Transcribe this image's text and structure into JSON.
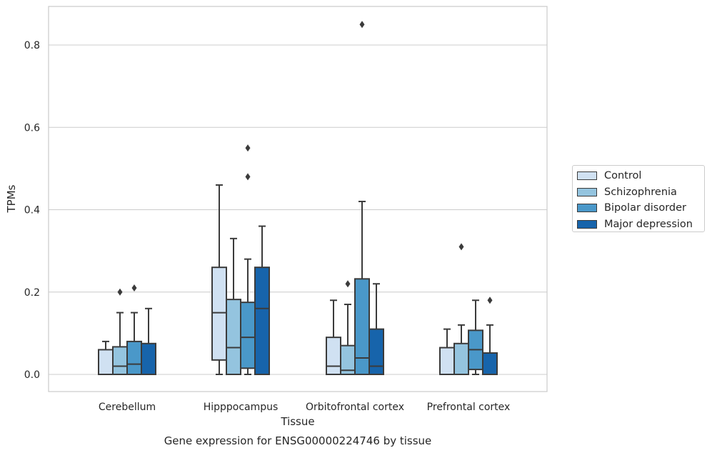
{
  "chart_data": {
    "type": "box",
    "title": "",
    "caption": "Gene expression for ENSG00000224746 by tissue",
    "xlabel": "Tissue",
    "ylabel": "TPMs",
    "ylim": [
      -0.042,
      0.893
    ],
    "yticks": [
      0.0,
      0.2,
      0.4,
      0.6,
      0.8
    ],
    "ytick_labels": [
      "0.0",
      "0.2",
      "0.4",
      "0.6",
      "0.8"
    ],
    "grid": "horizontal",
    "legend_position": "right",
    "categories": [
      "Cerebellum",
      "Hipppocampus",
      "Orbitofrontal cortex",
      "Prefrontal cortex"
    ],
    "series": [
      {
        "name": "Control",
        "color": "#d0e1f2",
        "boxes": [
          {
            "q1": 0.0,
            "median": 0.0,
            "q3": 0.06,
            "whisker_low": 0.0,
            "whisker_high": 0.08,
            "outliers": []
          },
          {
            "q1": 0.035,
            "median": 0.15,
            "q3": 0.26,
            "whisker_low": 0.0,
            "whisker_high": 0.46,
            "outliers": []
          },
          {
            "q1": 0.0,
            "median": 0.02,
            "q3": 0.09,
            "whisker_low": 0.0,
            "whisker_high": 0.18,
            "outliers": []
          },
          {
            "q1": 0.0,
            "median": 0.0,
            "q3": 0.065,
            "whisker_low": 0.0,
            "whisker_high": 0.11,
            "outliers": []
          }
        ]
      },
      {
        "name": "Schizophrenia",
        "color": "#94c4df",
        "boxes": [
          {
            "q1": 0.0,
            "median": 0.02,
            "q3": 0.067,
            "whisker_low": 0.0,
            "whisker_high": 0.15,
            "outliers": [
              0.2
            ]
          },
          {
            "q1": 0.0,
            "median": 0.065,
            "q3": 0.182,
            "whisker_low": 0.0,
            "whisker_high": 0.33,
            "outliers": []
          },
          {
            "q1": 0.0,
            "median": 0.01,
            "q3": 0.07,
            "whisker_low": 0.0,
            "whisker_high": 0.17,
            "outliers": [
              0.22
            ]
          },
          {
            "q1": 0.0,
            "median": 0.0,
            "q3": 0.075,
            "whisker_low": 0.0,
            "whisker_high": 0.12,
            "outliers": [
              0.31
            ]
          }
        ]
      },
      {
        "name": "Bipolar disorder",
        "color": "#4a98c9",
        "boxes": [
          {
            "q1": 0.0,
            "median": 0.025,
            "q3": 0.08,
            "whisker_low": 0.0,
            "whisker_high": 0.15,
            "outliers": [
              0.21
            ]
          },
          {
            "q1": 0.015,
            "median": 0.09,
            "q3": 0.175,
            "whisker_low": 0.0,
            "whisker_high": 0.28,
            "outliers": [
              0.48,
              0.55
            ]
          },
          {
            "q1": 0.0,
            "median": 0.04,
            "q3": 0.232,
            "whisker_low": 0.0,
            "whisker_high": 0.42,
            "outliers": [
              0.85
            ]
          },
          {
            "q1": 0.012,
            "median": 0.06,
            "q3": 0.107,
            "whisker_low": 0.0,
            "whisker_high": 0.18,
            "outliers": []
          }
        ]
      },
      {
        "name": "Major depression",
        "color": "#1764ab",
        "boxes": [
          {
            "q1": 0.0,
            "median": 0.0,
            "q3": 0.075,
            "whisker_low": 0.0,
            "whisker_high": 0.16,
            "outliers": []
          },
          {
            "q1": 0.0,
            "median": 0.16,
            "q3": 0.26,
            "whisker_low": 0.0,
            "whisker_high": 0.36,
            "outliers": []
          },
          {
            "q1": 0.0,
            "median": 0.02,
            "q3": 0.11,
            "whisker_low": 0.0,
            "whisker_high": 0.22,
            "outliers": []
          },
          {
            "q1": 0.0,
            "median": 0.0,
            "q3": 0.052,
            "whisker_low": 0.0,
            "whisker_high": 0.12,
            "outliers": [
              0.18
            ]
          }
        ]
      }
    ]
  }
}
